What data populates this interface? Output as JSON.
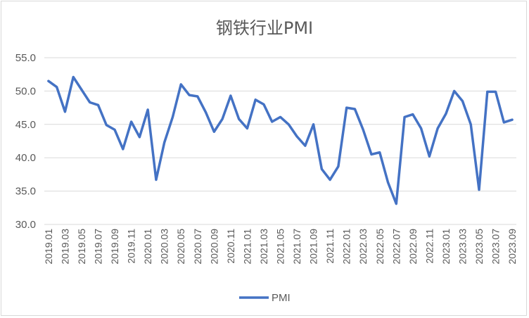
{
  "chart_data": {
    "type": "line",
    "title": "钢铁行业PMI",
    "xlabel": "",
    "ylabel": "",
    "ylim": [
      30.0,
      55.0
    ],
    "yticks": [
      "30.0",
      "35.0",
      "40.0",
      "45.0",
      "50.0",
      "55.0"
    ],
    "grid": true,
    "legend": "bottom",
    "x": [
      "2019.01",
      "2019.02",
      "2019.03",
      "2019.04",
      "2019.05",
      "2019.06",
      "2019.07",
      "2019.08",
      "2019.09",
      "2019.10",
      "2019.11",
      "2019.12",
      "2020.01",
      "2020.02",
      "2020.03",
      "2020.04",
      "2020.05",
      "2020.06",
      "2020.07",
      "2020.08",
      "2020.09",
      "2020.10",
      "2020.11",
      "2020.12",
      "2021.01",
      "2021.02",
      "2021.03",
      "2021.04",
      "2021.05",
      "2021.06",
      "2021.07",
      "2021.08",
      "2021.09",
      "2021.10",
      "2021.11",
      "2021.12",
      "2022.01",
      "2022.02",
      "2022.03",
      "2022.04",
      "2022.05",
      "2022.06",
      "2022.07",
      "2022.08",
      "2022.09",
      "2022.10",
      "2022.11",
      "2022.12",
      "2023.01",
      "2023.02",
      "2023.03",
      "2023.04",
      "2023.05",
      "2023.06",
      "2023.07",
      "2023.08",
      "2023.09"
    ],
    "series": [
      {
        "name": "PMI",
        "color": "#4472C4",
        "values": [
          51.5,
          50.6,
          46.9,
          52.1,
          50.2,
          48.3,
          47.9,
          44.9,
          44.2,
          41.3,
          45.4,
          43.1,
          47.2,
          36.7,
          42.3,
          46.1,
          51.0,
          49.4,
          49.2,
          46.8,
          43.9,
          45.8,
          49.3,
          45.8,
          44.4,
          48.7,
          48.0,
          45.4,
          46.1,
          45.0,
          43.2,
          41.8,
          45.0,
          38.3,
          36.7,
          38.7,
          47.5,
          47.3,
          44.2,
          40.5,
          40.8,
          36.3,
          33.1,
          46.1,
          46.5,
          44.4,
          40.2,
          44.4,
          46.6,
          50.0,
          48.5,
          45.0,
          35.2,
          49.9,
          49.9,
          45.3,
          45.7
        ]
      }
    ],
    "xtick_labels": [
      "2019.01",
      "2019.03",
      "2019.05",
      "2019.07",
      "2019.09",
      "2019.11",
      "2020.01",
      "2020.03",
      "2020.05",
      "2020.07",
      "2020.09",
      "2020.11",
      "2021.01",
      "2021.03",
      "2021.05",
      "2021.07",
      "2021.09",
      "2021.11",
      "2022.01",
      "2022.03",
      "2022.05",
      "2022.07",
      "2022.09",
      "2022.11",
      "2023.01",
      "2023.03",
      "2023.05",
      "2023.07",
      "2023.09"
    ]
  }
}
